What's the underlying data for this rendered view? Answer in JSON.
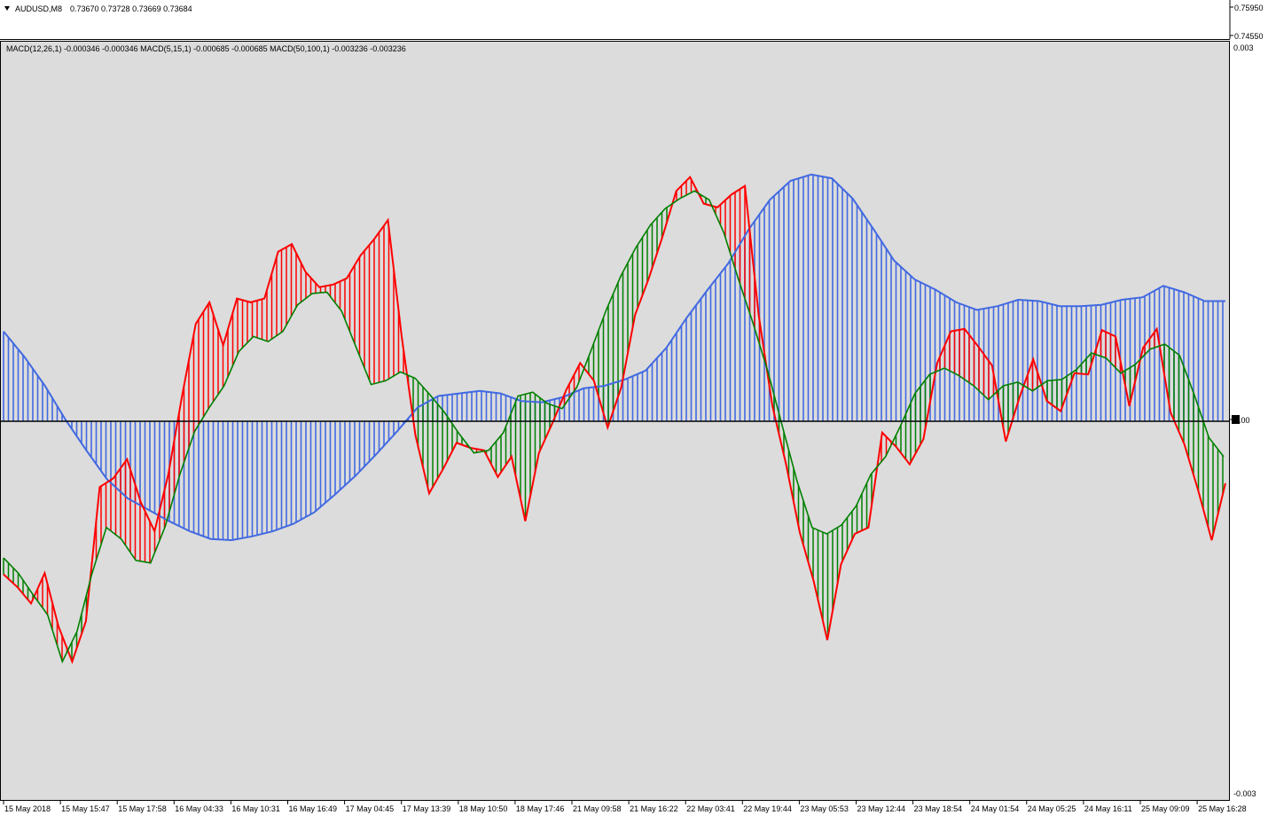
{
  "window": {
    "symbol_label": "AUDUSD,M8",
    "ohlc": "0.73670 0.73728 0.73669 0.73684"
  },
  "price_axis": {
    "labels": [
      "0.75950",
      "0.74550"
    ]
  },
  "indicator": {
    "label": "MACD(12,26,1) -0.000346 -0.000346  MACD(5,15,1) -0.000685 -0.000685  MACD(50,100,1) -0.003236 -0.003236",
    "axis_labels": [
      "0.003",
      "0.00",
      "-0.003"
    ]
  },
  "colors": {
    "background": "#dcdcdc",
    "up_color": "#008000",
    "down_color": "#ff0000",
    "slow_color": "#4169e1",
    "zero_line": "#000000"
  },
  "chart_data": {
    "type": "line",
    "title": "",
    "y_range": [
      -0.003,
      0.003
    ],
    "zero_line": 0,
    "grid": false,
    "x_tick_labels": [
      "15 May 2018",
      "15 May 15:47",
      "15 May 17:58",
      "16 May 04:33",
      "16 May 10:31",
      "16 May 16:49",
      "17 May 04:45",
      "17 May 13:39",
      "18 May 10:50",
      "18 May 17:46",
      "21 May 09:58",
      "21 May 16:22",
      "22 May 03:41",
      "22 May 19:44",
      "23 May 05:53",
      "23 May 12:44",
      "23 May 18:54",
      "24 May 01:54",
      "24 May 05:25",
      "24 May 16:11",
      "25 May 09:09",
      "25 May 16:28"
    ],
    "series": [
      {
        "name": "MACD(5,15,1)",
        "style": "filled histogram, red/green",
        "points": [
          [
            0,
            -0.00121
          ],
          [
            1,
            -0.00131
          ],
          [
            2,
            -0.00144
          ],
          [
            3,
            -0.0012
          ],
          [
            4,
            -0.00162
          ],
          [
            5,
            -0.0019
          ],
          [
            6,
            -0.00158
          ],
          [
            7,
            -0.00052
          ],
          [
            8,
            -0.00045
          ],
          [
            9,
            -0.0003
          ],
          [
            10,
            -0.00064
          ],
          [
            11,
            -0.00087
          ],
          [
            12,
            -0.00042
          ],
          [
            13,
            0.0002
          ],
          [
            14,
            0.00077
          ],
          [
            15,
            0.00094
          ],
          [
            16,
            0.0006
          ],
          [
            17,
            0.00097
          ],
          [
            18,
            0.00094
          ],
          [
            19,
            0.00097
          ],
          [
            20,
            0.00134
          ],
          [
            21,
            0.0014
          ],
          [
            22,
            0.00118
          ],
          [
            23,
            0.00106
          ],
          [
            24,
            0.00108
          ],
          [
            25,
            0.00113
          ],
          [
            26,
            0.00131
          ],
          [
            27,
            0.00144
          ],
          [
            28,
            0.00159
          ],
          [
            29,
            0.00067
          ],
          [
            30,
            -0.00011
          ],
          [
            31,
            -0.00057
          ],
          [
            32,
            -0.00038
          ],
          [
            33,
            -0.00017
          ],
          [
            34,
            -0.00021
          ],
          [
            35,
            -0.00023
          ],
          [
            36,
            -0.00044
          ],
          [
            37,
            -0.00028
          ],
          [
            38,
            -0.00079
          ],
          [
            39,
            -0.00025
          ],
          [
            40,
            -1e-05
          ],
          [
            41,
            0.00025
          ],
          [
            42,
            0.00046
          ],
          [
            43,
            0.00032
          ],
          [
            44,
            -5e-05
          ],
          [
            45,
            0.00027
          ],
          [
            46,
            0.00084
          ],
          [
            47,
            0.00113
          ],
          [
            48,
            0.00146
          ],
          [
            49,
            0.00182
          ],
          [
            50,
            0.00193
          ],
          [
            51,
            0.00172
          ],
          [
            52,
            0.00169
          ],
          [
            53,
            0.00179
          ],
          [
            54,
            0.00186
          ],
          [
            55,
            0.00084
          ],
          [
            56,
            0.00012
          ],
          [
            57,
            -0.00034
          ],
          [
            58,
            -0.00088
          ],
          [
            59,
            -0.00126
          ],
          [
            60,
            -0.00173
          ],
          [
            61,
            -0.00113
          ],
          [
            62,
            -0.00089
          ],
          [
            63,
            -0.00084
          ],
          [
            64,
            -9e-05
          ],
          [
            65,
            -0.0002
          ],
          [
            66,
            -0.00034
          ],
          [
            67,
            -0.00014
          ],
          [
            68,
            0.00046
          ],
          [
            69,
            0.00071
          ],
          [
            70,
            0.00073
          ],
          [
            71,
            0.00059
          ],
          [
            72,
            0.00044
          ],
          [
            73,
            -0.00016
          ],
          [
            74,
            0.00019
          ],
          [
            75,
            0.00049
          ],
          [
            76,
            0.00016
          ],
          [
            77,
            8e-05
          ],
          [
            78,
            0.00038
          ],
          [
            79,
            0.00037
          ],
          [
            80,
            0.00072
          ],
          [
            81,
            0.00067
          ],
          [
            82,
            0.00012
          ],
          [
            83,
            0.00058
          ],
          [
            84,
            0.00073
          ],
          [
            85,
            7e-05
          ],
          [
            86,
            -0.00018
          ],
          [
            87,
            -0.00054
          ],
          [
            88,
            -0.00094
          ],
          [
            89,
            -0.00049
          ]
        ]
      },
      {
        "name": "MACD(12,26,1)",
        "style": "dark green line",
        "points": [
          [
            0,
            -0.00108
          ],
          [
            1,
            -0.0012
          ],
          [
            2,
            -0.00137
          ],
          [
            3,
            -0.00153
          ],
          [
            4,
            -0.0019
          ],
          [
            5,
            -0.00166
          ],
          [
            6,
            -0.00121
          ],
          [
            7,
            -0.00084
          ],
          [
            8,
            -0.00093
          ],
          [
            9,
            -0.0011
          ],
          [
            10,
            -0.00112
          ],
          [
            11,
            -0.00083
          ],
          [
            12,
            -0.00042
          ],
          [
            13,
            -8e-05
          ],
          [
            14,
            0.00011
          ],
          [
            15,
            0.00028
          ],
          [
            16,
            0.00055
          ],
          [
            17,
            0.00067
          ],
          [
            18,
            0.00063
          ],
          [
            19,
            0.00071
          ],
          [
            20,
            0.00092
          ],
          [
            21,
            0.00101
          ],
          [
            22,
            0.00102
          ],
          [
            23,
            0.00087
          ],
          [
            24,
            0.00058
          ],
          [
            25,
            0.00029
          ],
          [
            26,
            0.00032
          ],
          [
            27,
            0.00039
          ],
          [
            28,
            0.00034
          ],
          [
            29,
            0.00021
          ],
          [
            30,
            7e-05
          ],
          [
            31,
            -0.0001
          ],
          [
            32,
            -0.00025
          ],
          [
            33,
            -0.00023
          ],
          [
            34,
            -9e-05
          ],
          [
            35,
            0.0002
          ],
          [
            36,
            0.00023
          ],
          [
            37,
            0.00014
          ],
          [
            38,
            0.0001
          ],
          [
            39,
            0.00027
          ],
          [
            40,
            0.00057
          ],
          [
            41,
            0.00088
          ],
          [
            42,
            0.00115
          ],
          [
            43,
            0.00137
          ],
          [
            44,
            0.00155
          ],
          [
            45,
            0.00168
          ],
          [
            46,
            0.00176
          ],
          [
            47,
            0.00182
          ],
          [
            48,
            0.00175
          ],
          [
            49,
            0.00149
          ],
          [
            50,
            0.00112
          ],
          [
            51,
            0.00077
          ],
          [
            52,
            0.00039
          ],
          [
            53,
            -5e-05
          ],
          [
            54,
            -0.00048
          ],
          [
            55,
            -0.00084
          ],
          [
            56,
            -0.00089
          ],
          [
            57,
            -0.00082
          ],
          [
            58,
            -0.00067
          ],
          [
            59,
            -0.00042
          ],
          [
            60,
            -0.00028
          ],
          [
            61,
            -4e-05
          ],
          [
            62,
            0.00022
          ],
          [
            63,
            0.00037
          ],
          [
            64,
            0.00042
          ],
          [
            65,
            0.00036
          ],
          [
            66,
            0.00028
          ],
          [
            67,
            0.00017
          ],
          [
            68,
            0.00028
          ],
          [
            69,
            0.00031
          ],
          [
            70,
            0.00024
          ],
          [
            71,
            0.00032
          ],
          [
            72,
            0.00033
          ],
          [
            73,
            0.00041
          ],
          [
            74,
            0.00054
          ],
          [
            75,
            0.0005
          ],
          [
            76,
            0.00038
          ],
          [
            77,
            0.00045
          ],
          [
            78,
            0.00057
          ],
          [
            79,
            0.00061
          ],
          [
            80,
            0.00052
          ],
          [
            81,
            0.00021
          ],
          [
            82,
            -0.00013
          ],
          [
            83,
            -0.00028
          ]
        ]
      },
      {
        "name": "MACD(50,100,1)",
        "style": "royal blue line with blue vertical histogram",
        "points": [
          [
            0,
            0.00071
          ],
          [
            2,
            0.00051
          ],
          [
            4,
            0.00028
          ],
          [
            6,
            1e-05
          ],
          [
            8,
            -0.00023
          ],
          [
            10,
            -0.00046
          ],
          [
            12,
            -0.00061
          ],
          [
            14,
            -0.0007
          ],
          [
            16,
            -0.00079
          ],
          [
            18,
            -0.00087
          ],
          [
            20,
            -0.00093
          ],
          [
            22,
            -0.00094
          ],
          [
            24,
            -0.00091
          ],
          [
            26,
            -0.00087
          ],
          [
            28,
            -0.00081
          ],
          [
            30,
            -0.00072
          ],
          [
            32,
            -0.00058
          ],
          [
            34,
            -0.00043
          ],
          [
            36,
            -0.00026
          ],
          [
            38,
            -8e-05
          ],
          [
            40,
            0.00011
          ],
          [
            42,
            0.0002
          ],
          [
            44,
            0.00022
          ],
          [
            46,
            0.00024
          ],
          [
            48,
            0.00022
          ],
          [
            50,
            0.00016
          ],
          [
            52,
            0.00015
          ],
          [
            54,
            0.00019
          ],
          [
            56,
            0.00026
          ],
          [
            58,
            0.00028
          ],
          [
            60,
            0.00033
          ],
          [
            62,
            0.0004
          ],
          [
            64,
            0.00058
          ],
          [
            66,
            0.00082
          ],
          [
            68,
            0.00104
          ],
          [
            70,
            0.00125
          ],
          [
            72,
            0.00152
          ],
          [
            74,
            0.00175
          ],
          [
            76,
            0.0019
          ],
          [
            78,
            0.00195
          ],
          [
            80,
            0.00192
          ],
          [
            82,
            0.00176
          ],
          [
            84,
            0.00152
          ],
          [
            86,
            0.00127
          ],
          [
            88,
            0.00112
          ],
          [
            90,
            0.00104
          ],
          [
            92,
            0.00094
          ],
          [
            94,
            0.00088
          ],
          [
            96,
            0.00091
          ],
          [
            98,
            0.00096
          ],
          [
            100,
            0.00095
          ],
          [
            102,
            0.00091
          ],
          [
            104,
            0.00091
          ],
          [
            106,
            0.00092
          ],
          [
            108,
            0.00096
          ],
          [
            110,
            0.00098
          ],
          [
            112,
            0.00107
          ],
          [
            114,
            0.00102
          ],
          [
            116,
            0.00095
          ],
          [
            118,
            0.00095
          ]
        ]
      }
    ]
  }
}
